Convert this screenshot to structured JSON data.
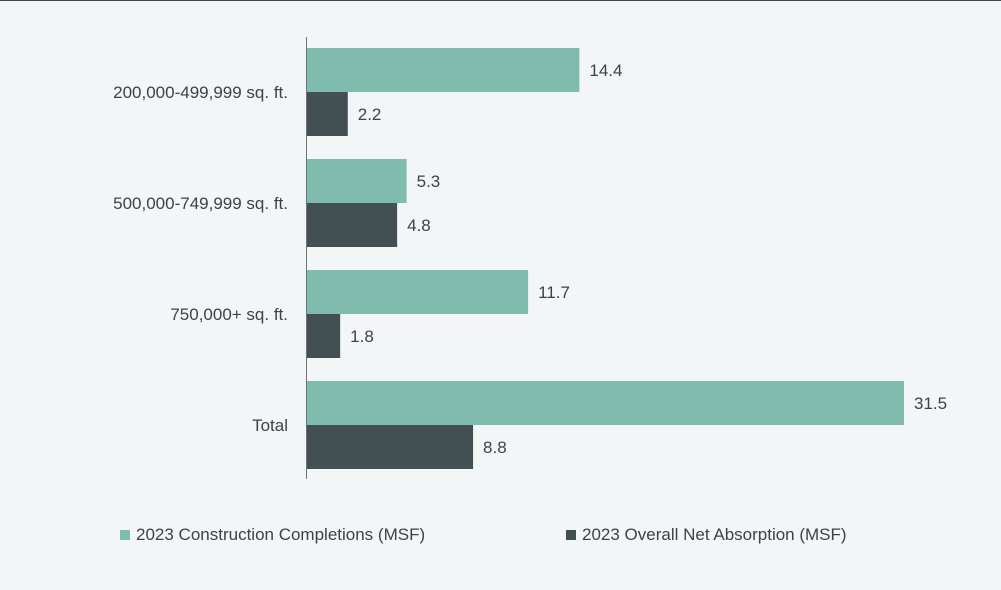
{
  "chart_data": {
    "type": "bar",
    "orientation": "horizontal",
    "title": "",
    "xlabel": "",
    "ylabel": "",
    "xlim": [
      0,
      31.5
    ],
    "grid": false,
    "legend_position": "bottom",
    "categories": [
      "200,000-499,999 sq. ft.",
      "500,000-749,999 sq. ft.",
      "750,000+ sq. ft.",
      "Total"
    ],
    "series": [
      {
        "name": "2023 Construction Completions (MSF)",
        "color": "#80bcad",
        "values": [
          14.4,
          5.3,
          11.7,
          31.5
        ]
      },
      {
        "name": "2023 Overall Net Absorption (MSF)",
        "color": "#435053",
        "values": [
          2.2,
          4.8,
          1.8,
          8.8
        ]
      }
    ]
  }
}
